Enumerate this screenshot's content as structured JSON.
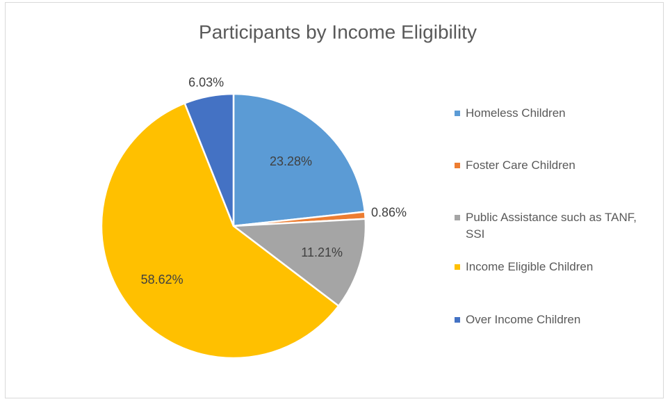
{
  "chart_data": {
    "type": "pie",
    "title": "Participants by Income Eligibility",
    "categories": [
      "Homeless Children",
      "Foster Care Children",
      "Public Assistance such as TANF, SSI",
      "Income Eligible Children",
      "Over Income Children"
    ],
    "values": [
      23.28,
      0.86,
      11.21,
      58.62,
      6.03
    ],
    "value_labels": [
      "23.28%",
      "0.86%",
      "11.21%",
      "58.62%",
      "6.03%"
    ],
    "colors": [
      "#5b9bd5",
      "#ed7d31",
      "#a5a5a5",
      "#ffc000",
      "#4472c4"
    ],
    "legend": "right"
  }
}
